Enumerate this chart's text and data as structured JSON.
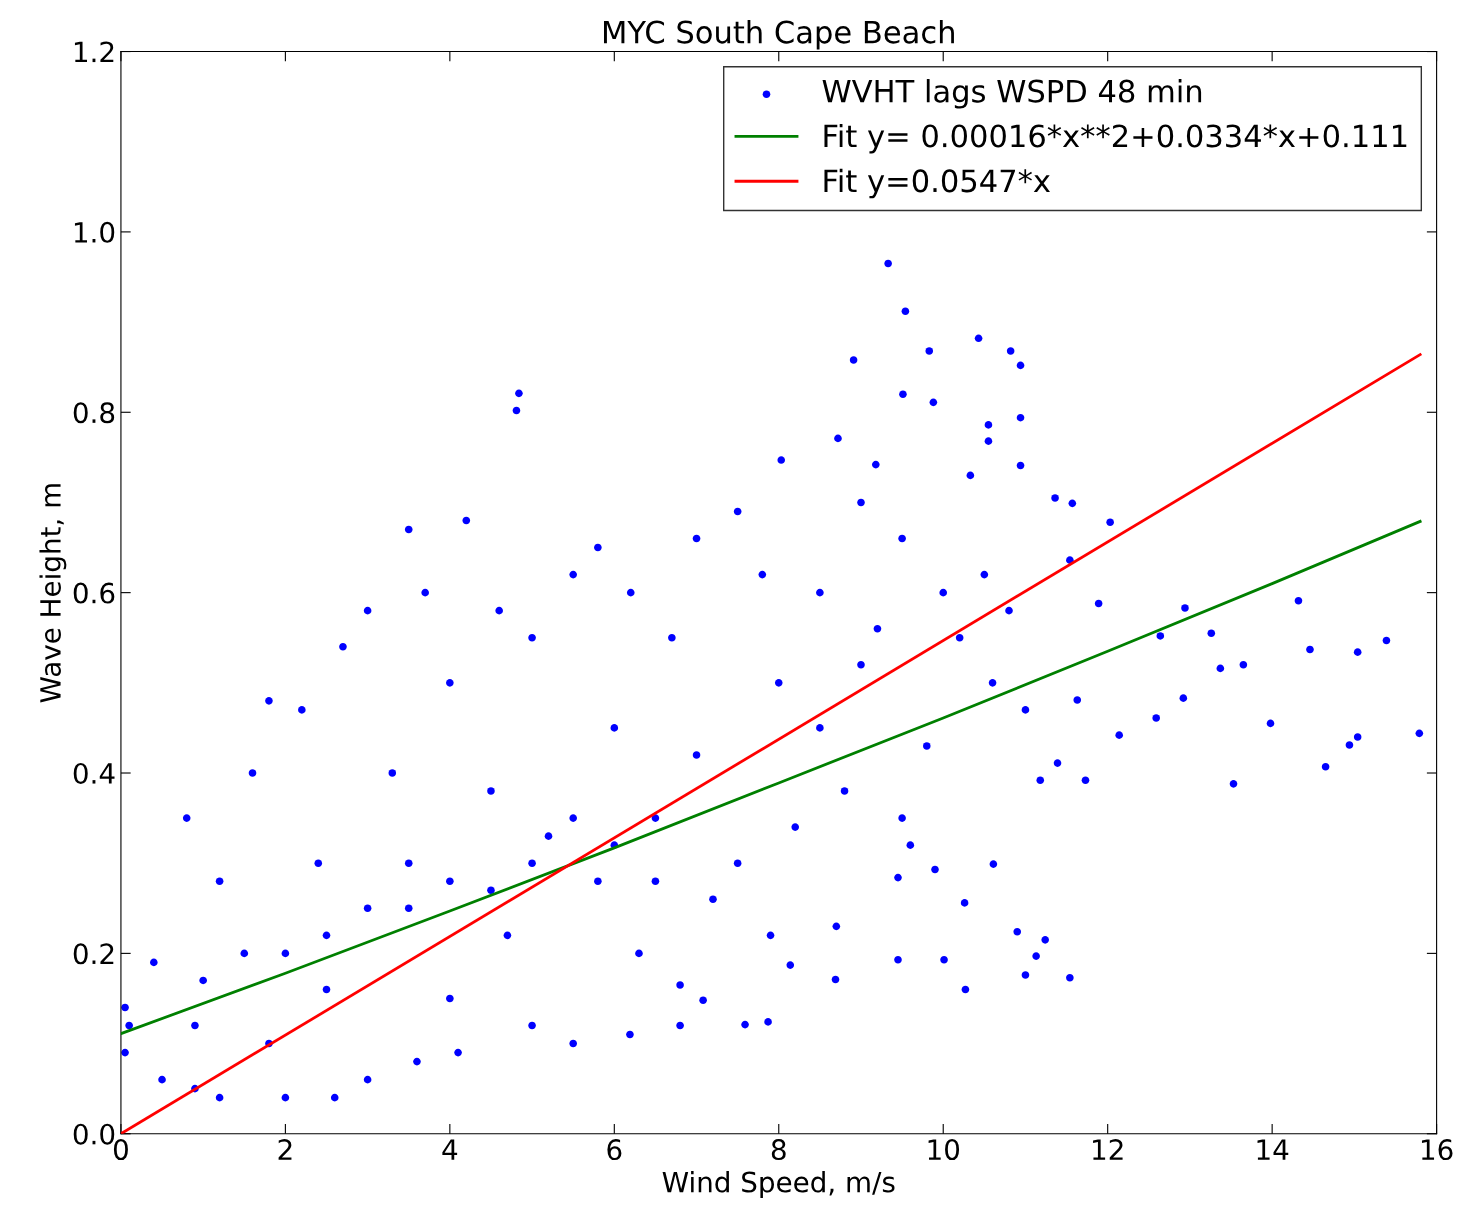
{
  "chart_data": {
    "type": "scatter",
    "title": "MYC South Cape Beach",
    "xlabel": "Wind Speed, m/s",
    "ylabel": "Wave Height, m",
    "xlim": [
      0,
      16
    ],
    "xticks": [
      0,
      2,
      4,
      6,
      8,
      10,
      12,
      14,
      16
    ],
    "ylim": [
      0,
      1.2
    ],
    "yticks": [
      {
        "value": 0,
        "label": "0.0"
      },
      {
        "value": 0.2,
        "label": "0.2"
      },
      {
        "value": 0.4,
        "label": "0.4"
      },
      {
        "value": 0.6,
        "label": "0.6"
      },
      {
        "value": 0.8,
        "label": "0.8"
      },
      {
        "value": 1.0,
        "label": "1.0"
      },
      {
        "value": 1.2,
        "label": "1.2"
      }
    ],
    "grid": false,
    "legend": "top right",
    "series": [
      {
        "name": "WVHT lags WSPD 48 min",
        "marker": "circle",
        "color": "#0000ff",
        "x": [
          9.33,
          9.54,
          10.43,
          8.91,
          9.83,
          10.82,
          10.94,
          9.88,
          9.51,
          10.55,
          10.55,
          10.94,
          4.84,
          4.81,
          8.72,
          8.03,
          10.94,
          9.18,
          10.33,
          15.79,
          14.32,
          15.39,
          15.04,
          14.46,
          15.04,
          14.94,
          14.65,
          13.98,
          13.53,
          13.65,
          13.37,
          13.26,
          12.94,
          12.92,
          12.64,
          12.59,
          12.14,
          12.03,
          11.89,
          11.73,
          11.63,
          11.57,
          11.36,
          11.39,
          11.18,
          11.54,
          11.54,
          11.24,
          11.13,
          11.0,
          10.9,
          10.61,
          10.27,
          10.26,
          10.01,
          9.9,
          9.45,
          9.45,
          9.6,
          8.69,
          8.14,
          7.87,
          7.59,
          7.08,
          6.8,
          6.19,
          0.05,
          0.05,
          0.1,
          0.4,
          0.5,
          0.8,
          0.9,
          0.9,
          1.2,
          1.2,
          1.5,
          1.6,
          1.8,
          1.8,
          2.0,
          2.2,
          2.4,
          2.5,
          2.6,
          2.7,
          3.0,
          3.0,
          3.3,
          3.5,
          3.5,
          3.6,
          3.7,
          4.0,
          4.0,
          4.2,
          4.1,
          4.5,
          4.6,
          4.7,
          5.0,
          5.0,
          5.2,
          5.5,
          5.5,
          5.8,
          5.8,
          6.0,
          6.2,
          6.3,
          6.5,
          6.7,
          6.8,
          7.0,
          7.0,
          7.2,
          7.5,
          7.5,
          7.8,
          7.9,
          8.0,
          8.2,
          8.5,
          8.5,
          8.8,
          8.7,
          9.0,
          9.0,
          9.2,
          9.5,
          9.5,
          9.8,
          10.0,
          10.2,
          10.5,
          10.6,
          10.8,
          11.0,
          2.0,
          3.0,
          4.0,
          5.0,
          6.0,
          1.0,
          2.5,
          3.5,
          4.5,
          5.5,
          6.5
        ],
        "values": [
          0.965,
          0.912,
          0.882,
          0.858,
          0.868,
          0.868,
          0.852,
          0.811,
          0.82,
          0.786,
          0.768,
          0.794,
          0.821,
          0.802,
          0.771,
          0.747,
          0.741,
          0.742,
          0.73,
          0.444,
          0.591,
          0.547,
          0.534,
          0.537,
          0.44,
          0.431,
          0.407,
          0.455,
          0.388,
          0.52,
          0.516,
          0.555,
          0.583,
          0.483,
          0.552,
          0.461,
          0.442,
          0.678,
          0.588,
          0.392,
          0.481,
          0.699,
          0.705,
          0.411,
          0.392,
          0.636,
          0.173,
          0.215,
          0.197,
          0.176,
          0.224,
          0.299,
          0.16,
          0.256,
          0.193,
          0.293,
          0.193,
          0.284,
          0.32,
          0.171,
          0.187,
          0.124,
          0.121,
          0.148,
          0.165,
          0.11,
          0.14,
          0.09,
          0.12,
          0.19,
          0.06,
          0.35,
          0.12,
          0.05,
          0.28,
          0.04,
          0.2,
          0.4,
          0.48,
          0.1,
          0.04,
          0.47,
          0.3,
          0.16,
          0.04,
          0.54,
          0.58,
          0.06,
          0.4,
          0.67,
          0.25,
          0.08,
          0.6,
          0.5,
          0.15,
          0.68,
          0.09,
          0.38,
          0.58,
          0.22,
          0.55,
          0.12,
          0.33,
          0.62,
          0.1,
          0.65,
          0.28,
          0.45,
          0.6,
          0.2,
          0.35,
          0.55,
          0.12,
          0.66,
          0.42,
          0.26,
          0.69,
          0.3,
          0.62,
          0.22,
          0.5,
          0.34,
          0.6,
          0.45,
          0.38,
          0.23,
          0.7,
          0.52,
          0.56,
          0.66,
          0.35,
          0.43,
          0.6,
          0.55,
          0.62,
          0.5,
          0.58,
          0.47,
          0.2,
          0.25,
          0.28,
          0.3,
          0.32,
          0.17,
          0.22,
          0.3,
          0.27,
          0.35,
          0.28
        ]
      },
      {
        "name": "Fit y= 0.00016*x**2+0.0334*x+0.111",
        "type": "line",
        "color": "#008000",
        "x": [
          0,
          2,
          4,
          6,
          8,
          10,
          12,
          14,
          15.8
        ],
        "values": [
          0.111,
          0.178,
          0.247,
          0.317,
          0.389,
          0.461,
          0.535,
          0.61,
          0.679
        ]
      },
      {
        "name": "Fit y=0.0547*x",
        "type": "line",
        "color": "#ff0000",
        "x": [
          0,
          15.8
        ],
        "values": [
          0,
          0.864
        ]
      }
    ]
  }
}
